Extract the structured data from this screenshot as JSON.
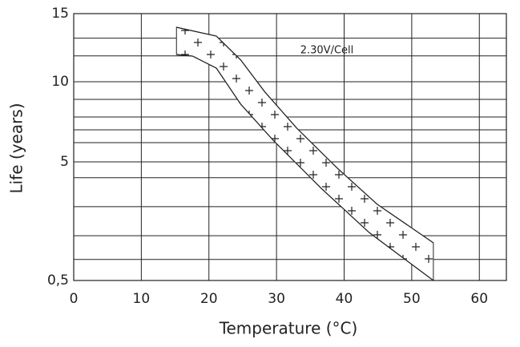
{
  "chart_data": {
    "type": "band",
    "annotation": "2.30V/Cell",
    "x_label": "Temperature (°C)",
    "y_label": "Life (years)",
    "xlim": [
      0,
      64
    ],
    "xticks": [
      0,
      10,
      20,
      30,
      40,
      50,
      60
    ],
    "ylim": [
      0.5,
      15
    ],
    "yticks": [
      {
        "value": 0.5,
        "label": "0,5"
      },
      5,
      10,
      15
    ],
    "yminor": [
      1.3,
      2.2,
      3.3,
      4.4,
      6.2,
      7.0,
      7.8,
      8.9,
      11.9,
      13.2
    ],
    "grid": true,
    "color": "#222222",
    "series": [
      {
        "x": [
          15.2,
          21.1,
          24.7,
          28.3,
          33.0,
          39.0,
          44.9,
          53.2
        ],
        "values": [
          14.0,
          13.35,
          11.6,
          9.35,
          7.1,
          4.76,
          3.39,
          1.93
        ]
      },
      {
        "x": [
          15.2,
          17.6,
          21.1,
          24.7,
          29.5,
          36.6,
          43.7,
          53.2
        ],
        "values": [
          12.0,
          11.88,
          11.0,
          8.6,
          6.35,
          4.0,
          2.32,
          0.5
        ]
      }
    ]
  }
}
